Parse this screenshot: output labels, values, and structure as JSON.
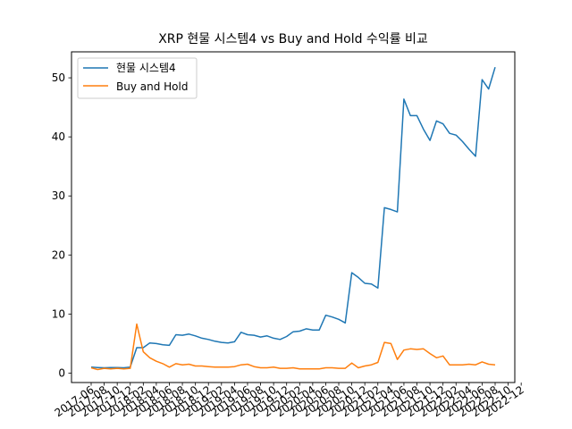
{
  "chart_data": {
    "type": "line",
    "title": "XRP 현물 시스템4 vs Buy and Hold 수익률 비교",
    "xlabel": "",
    "ylabel": "",
    "ylim": [
      -1.6,
      54.4
    ],
    "yticks": [
      0,
      10,
      20,
      30,
      40,
      50
    ],
    "grid": false,
    "legend_position": "top-left",
    "x_tick_labels": [
      "2017-06",
      "2017-08",
      "2017-10",
      "2017-12",
      "2018-02",
      "2018-04",
      "2018-06",
      "2018-08",
      "2018-10",
      "2018-12",
      "2019-02",
      "2019-04",
      "2019-06",
      "2019-08",
      "2019-10",
      "2019-12",
      "2020-02",
      "2020-04",
      "2020-06",
      "2020-08",
      "2020-10",
      "2020-12",
      "2021-02",
      "2021-04",
      "2021-06",
      "2021-08",
      "2021-10",
      "2021-12",
      "2022-02",
      "2022-04",
      "2022-06",
      "2022-08",
      "2022-10",
      "2022-12"
    ],
    "series": [
      {
        "name": "현물 시스템4",
        "color": "#1f77b4",
        "values": [
          1.0,
          0.95,
          0.9,
          0.95,
          0.95,
          0.9,
          1.0,
          4.3,
          4.3,
          5.1,
          5.0,
          4.8,
          4.7,
          6.5,
          6.4,
          6.6,
          6.3,
          5.9,
          5.7,
          5.4,
          5.2,
          5.1,
          5.3,
          6.9,
          6.5,
          6.4,
          6.1,
          6.3,
          5.9,
          5.7,
          6.2,
          7.0,
          7.1,
          7.5,
          7.3,
          7.3,
          9.8,
          9.5,
          9.1,
          8.5,
          17.0,
          16.2,
          15.2,
          15.1,
          14.4,
          28.0,
          27.7,
          27.3,
          46.4,
          43.6,
          43.6,
          41.3,
          39.4,
          42.7,
          42.2,
          40.6,
          40.3,
          39.2,
          37.9,
          36.7,
          49.7,
          48.1,
          51.8
        ]
      },
      {
        "name": "Buy and Hold",
        "color": "#ff7f0e",
        "values": [
          0.9,
          0.6,
          0.8,
          0.7,
          0.8,
          0.7,
          0.8,
          8.3,
          3.6,
          2.6,
          2.0,
          1.6,
          1.0,
          1.6,
          1.4,
          1.5,
          1.2,
          1.2,
          1.1,
          1.0,
          1.0,
          1.0,
          1.1,
          1.4,
          1.5,
          1.1,
          0.9,
          0.9,
          1.0,
          0.8,
          0.8,
          0.9,
          0.7,
          0.7,
          0.7,
          0.7,
          0.9,
          0.9,
          0.8,
          0.8,
          1.7,
          0.9,
          1.2,
          1.4,
          1.8,
          5.2,
          5.0,
          2.3,
          3.9,
          4.1,
          4.0,
          4.1,
          3.3,
          2.6,
          2.9,
          1.4,
          1.4,
          1.4,
          1.5,
          1.4,
          1.9,
          1.5,
          1.4
        ]
      }
    ]
  }
}
